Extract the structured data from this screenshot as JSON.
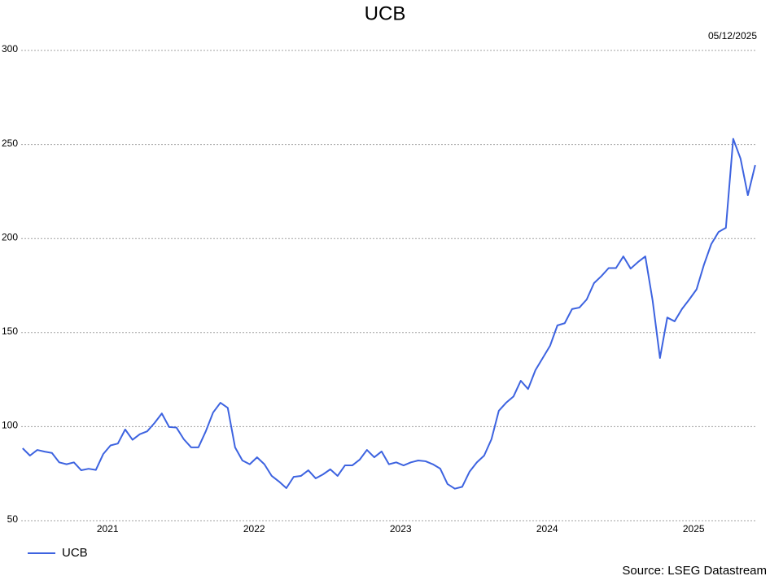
{
  "chart_data": {
    "type": "line",
    "title": "UCB",
    "date_label": "05/12/2025",
    "source": "Source: LSEG Datastream",
    "x": [
      2020.42,
      2020.47,
      2020.52,
      2020.57,
      2020.62,
      2020.67,
      2020.72,
      2020.77,
      2020.82,
      2020.87,
      2020.92,
      2020.97,
      2021.02,
      2021.07,
      2021.12,
      2021.17,
      2021.22,
      2021.27,
      2021.32,
      2021.37,
      2021.42,
      2021.47,
      2021.52,
      2021.57,
      2021.62,
      2021.67,
      2021.72,
      2021.77,
      2021.82,
      2021.87,
      2021.92,
      2021.97,
      2022.02,
      2022.07,
      2022.12,
      2022.17,
      2022.22,
      2022.27,
      2022.32,
      2022.37,
      2022.42,
      2022.47,
      2022.52,
      2022.57,
      2022.62,
      2022.67,
      2022.72,
      2022.77,
      2022.82,
      2022.87,
      2022.92,
      2022.97,
      2023.02,
      2023.07,
      2023.12,
      2023.17,
      2023.22,
      2023.27,
      2023.32,
      2023.37,
      2023.42,
      2023.47,
      2023.52,
      2023.57,
      2023.62,
      2023.67,
      2023.72,
      2023.77,
      2023.82,
      2023.87,
      2023.92,
      2023.97,
      2024.02,
      2024.07,
      2024.12,
      2024.17,
      2024.22,
      2024.27,
      2024.32,
      2024.37,
      2024.42,
      2024.47,
      2024.52,
      2024.57,
      2024.62,
      2024.67,
      2024.72,
      2024.77,
      2024.82,
      2024.87,
      2024.92,
      2024.97,
      2025.02,
      2025.07,
      2025.12,
      2025.17,
      2025.22,
      2025.27,
      2025.32,
      2025.37,
      2025.42
    ],
    "series": [
      {
        "name": "UCB",
        "color": "#3d63e0",
        "values": [
          88.5,
          84.6,
          87.6,
          86.7,
          86,
          81,
          80,
          81,
          76.8,
          77.6,
          77,
          85.4,
          90,
          91,
          98.5,
          93,
          96,
          97.5,
          101.9,
          107,
          99.8,
          99.5,
          93.3,
          89,
          89,
          97.5,
          107.5,
          112.7,
          110,
          89,
          82,
          80,
          83.7,
          80,
          73.8,
          70.8,
          67.3,
          73.3,
          73.8,
          76.8,
          72.5,
          74.6,
          77.3,
          73.8,
          79.4,
          79.4,
          82.4,
          87.6,
          83.7,
          86.8,
          80,
          81,
          79.4,
          81,
          82,
          81.6,
          80,
          77.7,
          69.5,
          67,
          68,
          76,
          81,
          84.6,
          93.3,
          108.4,
          112.7,
          116,
          124.4,
          120,
          130,
          136.5,
          143,
          153.8,
          155,
          162.5,
          163.3,
          167.6,
          176.3,
          180,
          184.3,
          184.3,
          190.5,
          184,
          187.5,
          190.5,
          167,
          136.5,
          158,
          156,
          162.5,
          167.6,
          173,
          186,
          197,
          203.5,
          205.7,
          253,
          242.5,
          223,
          239
        ]
      }
    ],
    "xlim": [
      2020.41,
      2025.46
    ],
    "xticks": [
      2021,
      2022,
      2023,
      2024,
      2025
    ],
    "ylim": [
      50,
      300
    ],
    "yticks": [
      50,
      100,
      150,
      200,
      250,
      300
    ],
    "grid": true,
    "legend": "bottom-left"
  }
}
